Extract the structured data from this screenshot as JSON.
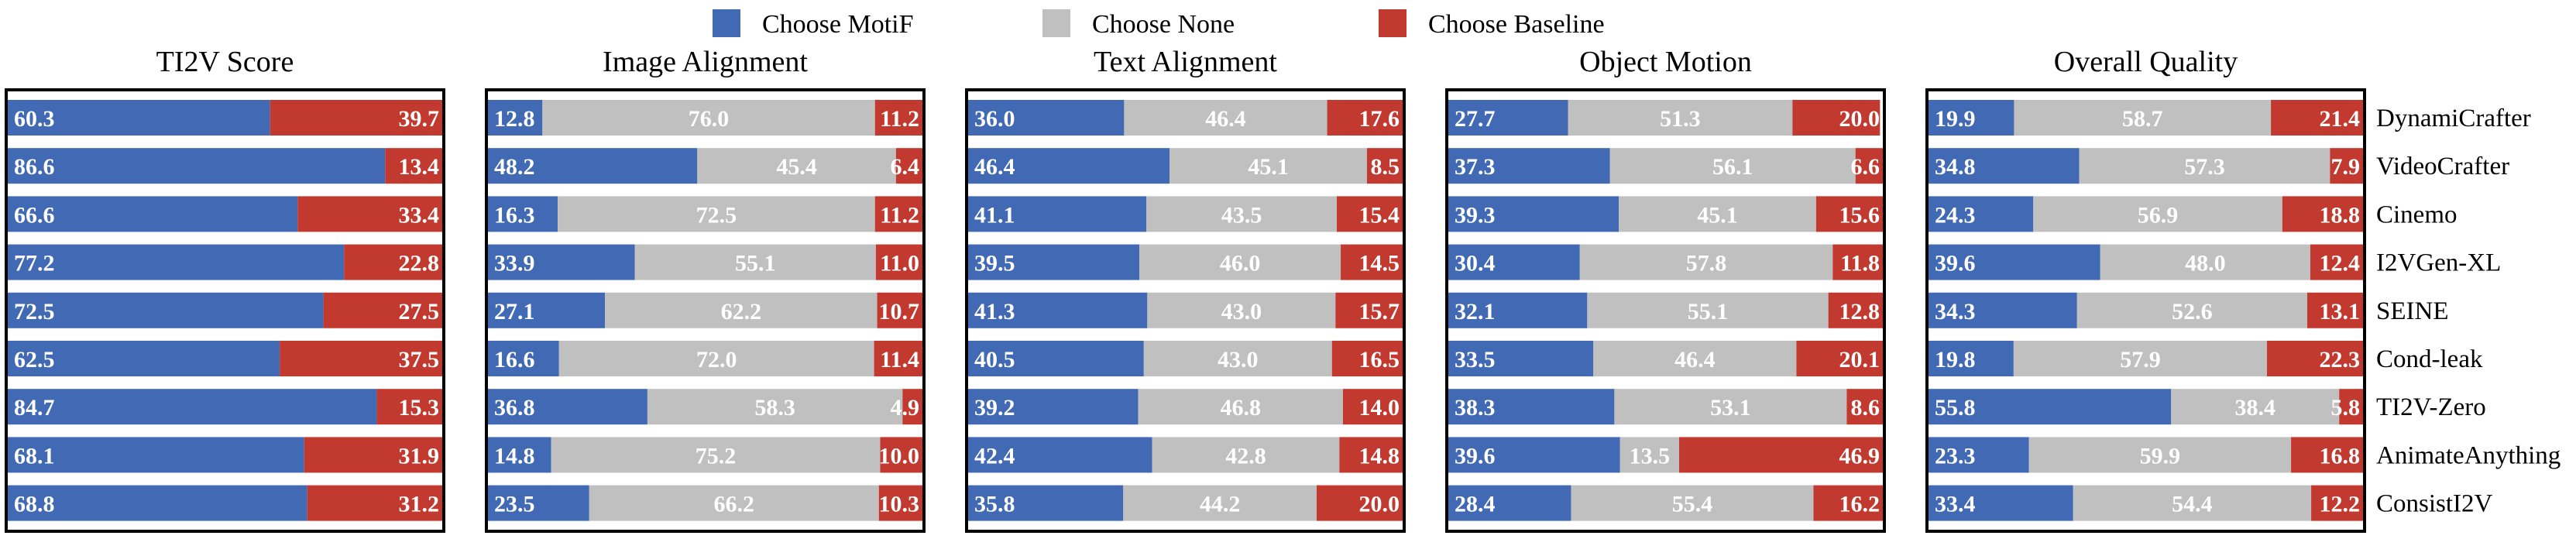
{
  "legend": [
    {
      "label": "Choose MotiF",
      "color": "#4169b4"
    },
    {
      "label": "Choose None",
      "color": "#c0c0c0"
    },
    {
      "label": "Choose Baseline",
      "color": "#c2392f"
    }
  ],
  "colors": {
    "motif": "#4169b4",
    "none": "#c0c0c0",
    "baseline": "#c2392f",
    "text": "#ffffff",
    "frame": "#000000"
  },
  "chart_data": {
    "type": "bar",
    "orientation": "horizontal-stacked-percent",
    "categories": [
      "DynamiCrafter",
      "VideoCrafter",
      "Cinemo",
      "I2VGen-XL",
      "SEINE",
      "Cond-leak",
      "TI2V-Zero",
      "AnimateAnything",
      "ConsistI2V"
    ],
    "xlim": [
      0,
      100
    ],
    "panels": [
      {
        "title": "TI2V Score",
        "series": [
          {
            "name": "Choose MotiF",
            "values": [
              60.3,
              86.6,
              66.6,
              77.2,
              72.5,
              62.5,
              84.7,
              68.1,
              68.8
            ]
          },
          {
            "name": "Choose Baseline",
            "values": [
              39.7,
              13.4,
              33.4,
              22.8,
              27.5,
              37.5,
              15.3,
              31.9,
              31.2
            ]
          }
        ]
      },
      {
        "title": "Image Alignment",
        "series": [
          {
            "name": "Choose MotiF",
            "values": [
              12.8,
              48.2,
              16.3,
              33.9,
              27.1,
              16.6,
              36.8,
              14.8,
              23.5
            ]
          },
          {
            "name": "Choose None",
            "values": [
              76.0,
              45.4,
              72.5,
              55.1,
              62.2,
              72.0,
              58.3,
              75.2,
              66.2
            ]
          },
          {
            "name": "Choose Baseline",
            "values": [
              11.2,
              6.4,
              11.2,
              11.0,
              10.7,
              11.4,
              4.9,
              10.0,
              10.3
            ]
          }
        ]
      },
      {
        "title": "Text Alignment",
        "series": [
          {
            "name": "Choose MotiF",
            "values": [
              36.0,
              46.4,
              41.1,
              39.5,
              41.3,
              40.5,
              39.2,
              42.4,
              35.8
            ]
          },
          {
            "name": "Choose None",
            "values": [
              46.4,
              45.1,
              43.5,
              46.0,
              43.0,
              43.0,
              46.8,
              42.8,
              44.2
            ]
          },
          {
            "name": "Choose Baseline",
            "values": [
              17.6,
              8.5,
              15.4,
              14.5,
              15.7,
              16.5,
              14.0,
              14.8,
              20.0
            ]
          }
        ]
      },
      {
        "title": "Object Motion",
        "series": [
          {
            "name": "Choose MotiF",
            "values": [
              27.7,
              37.3,
              39.3,
              30.4,
              32.1,
              33.5,
              38.3,
              39.6,
              28.4
            ]
          },
          {
            "name": "Choose None",
            "values": [
              51.3,
              56.1,
              45.1,
              57.8,
              55.1,
              46.4,
              53.1,
              13.5,
              55.4
            ]
          },
          {
            "name": "Choose Baseline",
            "values": [
              20.0,
              6.6,
              15.6,
              11.8,
              12.8,
              20.1,
              8.6,
              46.9,
              16.2
            ]
          }
        ]
      },
      {
        "title": "Overall Quality",
        "series": [
          {
            "name": "Choose MotiF",
            "values": [
              19.9,
              34.8,
              24.3,
              39.6,
              34.3,
              19.8,
              55.8,
              23.3,
              33.4
            ]
          },
          {
            "name": "Choose None",
            "values": [
              58.7,
              57.3,
              56.9,
              48.0,
              52.6,
              57.9,
              38.4,
              59.9,
              54.4
            ]
          },
          {
            "name": "Choose Baseline",
            "values": [
              21.4,
              7.9,
              18.8,
              12.4,
              13.1,
              22.3,
              5.8,
              16.8,
              12.2
            ]
          }
        ]
      }
    ]
  }
}
